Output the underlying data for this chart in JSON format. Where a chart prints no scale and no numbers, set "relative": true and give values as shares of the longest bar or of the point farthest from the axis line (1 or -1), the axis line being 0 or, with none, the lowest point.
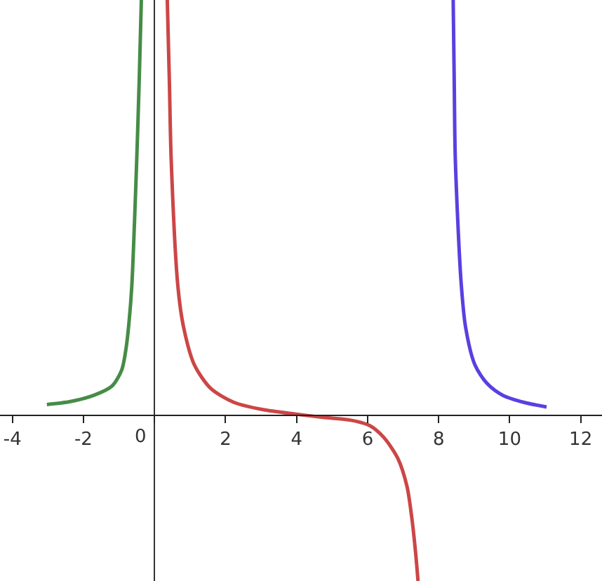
{
  "chart_data": {
    "type": "line",
    "relative": true,
    "xlim": [
      -4.35,
      12.6
    ],
    "xticks": [
      -4,
      -2,
      0,
      2,
      4,
      6,
      8,
      10,
      12
    ],
    "series": [
      {
        "color": "#468c46",
        "x": [
          -3.03,
          -2.37,
          -1.71,
          -1.19,
          -0.92,
          -0.8,
          -0.72,
          -0.64,
          -0.5,
          -0.43,
          -0.37
        ],
        "values": [
          0.024,
          0.031,
          0.046,
          0.069,
          0.108,
          0.16,
          0.22,
          0.308,
          0.615,
          0.807,
          1.0
        ]
      },
      {
        "color": "#cc4646",
        "x": [
          0.36,
          0.42,
          0.47,
          0.66,
          0.82,
          1.12,
          1.58,
          2.24,
          3.03,
          3.95,
          4.74,
          5.53,
          6.06,
          6.46,
          6.85,
          7.11,
          7.25,
          7.35,
          7.42
        ],
        "values": [
          1.0,
          0.8,
          0.615,
          0.308,
          0.21,
          0.12,
          0.063,
          0.029,
          0.012,
          0.001,
          -0.007,
          -0.014,
          -0.027,
          -0.056,
          -0.106,
          -0.174,
          -0.253,
          -0.332,
          -0.402
        ]
      },
      {
        "color": "#5b3fe0",
        "x": [
          8.41,
          8.44,
          8.47,
          8.63,
          8.76,
          9.02,
          9.36,
          9.81,
          10.41,
          11.04
        ],
        "values": [
          1.0,
          0.8,
          0.616,
          0.322,
          0.21,
          0.12,
          0.075,
          0.046,
          0.029,
          0.018
        ]
      }
    ]
  }
}
